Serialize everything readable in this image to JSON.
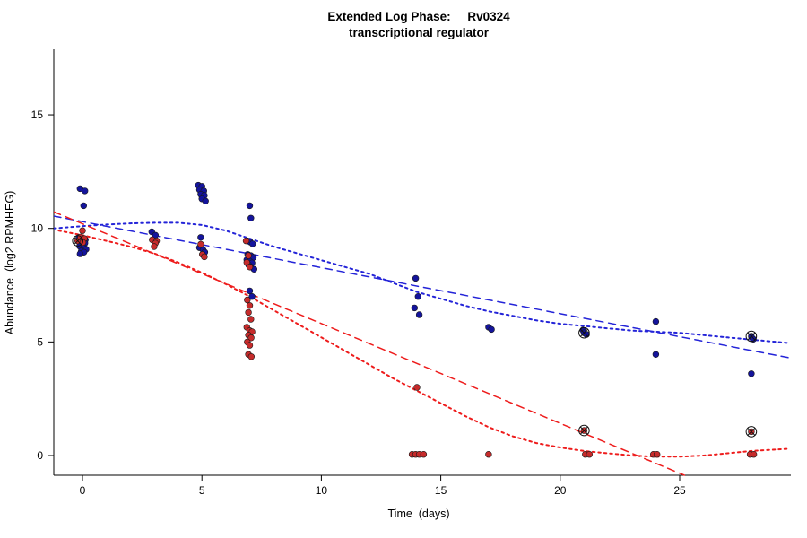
{
  "chart_data": {
    "type": "scatter",
    "title": "Extended Log Phase:     Rv0324",
    "subtitle": "transcriptional regulator",
    "xlabel": "Time  (days)",
    "ylabel": "Abundance  (log2 RPMHEG)",
    "xlim": [
      -1.2,
      29.6
    ],
    "ylim": [
      -0.9,
      17.9
    ],
    "xticks": [
      0,
      5,
      10,
      15,
      20,
      25
    ],
    "yticks": [
      0,
      5,
      10,
      15
    ],
    "grid": false,
    "legend": "none",
    "series": [
      {
        "name": "blue",
        "color": "#14149C",
        "points": [
          [
            -0.1,
            11.75
          ],
          [
            0.1,
            11.65
          ],
          [
            0.05,
            11.0
          ],
          [
            -0.15,
            9.6
          ],
          [
            0.0,
            9.55
          ],
          [
            0.12,
            9.5
          ],
          [
            -0.05,
            9.42
          ],
          [
            0.1,
            9.35
          ],
          [
            -0.12,
            9.22
          ],
          [
            0.05,
            9.15
          ],
          [
            0.15,
            9.08
          ],
          [
            -0.05,
            9.0
          ],
          [
            0.06,
            8.95
          ],
          [
            -0.1,
            8.88
          ],
          [
            2.9,
            9.85
          ],
          [
            3.05,
            9.7
          ],
          [
            4.85,
            11.9
          ],
          [
            5.0,
            11.85
          ],
          [
            4.9,
            11.7
          ],
          [
            5.08,
            11.65
          ],
          [
            4.95,
            11.5
          ],
          [
            5.1,
            11.45
          ],
          [
            5.0,
            11.3
          ],
          [
            5.15,
            11.2
          ],
          [
            4.95,
            9.6
          ],
          [
            4.9,
            9.15
          ],
          [
            5.05,
            9.05
          ],
          [
            5.12,
            8.95
          ],
          [
            7.0,
            11.0
          ],
          [
            7.05,
            10.45
          ],
          [
            6.9,
            9.45
          ],
          [
            7.02,
            9.4
          ],
          [
            7.12,
            9.32
          ],
          [
            6.92,
            8.85
          ],
          [
            7.05,
            8.8
          ],
          [
            7.15,
            8.72
          ],
          [
            6.88,
            8.62
          ],
          [
            7.0,
            8.55
          ],
          [
            7.1,
            8.48
          ],
          [
            6.95,
            8.4
          ],
          [
            7.05,
            8.3
          ],
          [
            7.18,
            8.2
          ],
          [
            7.0,
            7.25
          ],
          [
            7.1,
            7.0
          ],
          [
            13.95,
            7.8
          ],
          [
            14.05,
            7.0
          ],
          [
            13.9,
            6.5
          ],
          [
            14.1,
            6.2
          ],
          [
            17.0,
            5.65
          ],
          [
            17.12,
            5.55
          ],
          [
            20.95,
            5.52
          ],
          [
            21.0,
            5.4
          ],
          [
            21.1,
            5.33
          ],
          [
            24.0,
            5.9
          ],
          [
            24.0,
            4.45
          ],
          [
            28.0,
            5.25
          ],
          [
            28.08,
            5.12
          ],
          [
            28.0,
            3.6
          ]
        ]
      },
      {
        "name": "red",
        "color": "#C62B2B",
        "points": [
          [
            -0.2,
            9.45
          ],
          [
            0.0,
            9.9
          ],
          [
            -0.08,
            9.62
          ],
          [
            0.08,
            9.55
          ],
          [
            0.02,
            9.38
          ],
          [
            2.92,
            9.5
          ],
          [
            3.1,
            9.45
          ],
          [
            3.05,
            9.35
          ],
          [
            3.0,
            9.2
          ],
          [
            4.95,
            9.3
          ],
          [
            5.02,
            8.85
          ],
          [
            5.1,
            8.75
          ],
          [
            6.85,
            9.45
          ],
          [
            6.95,
            8.8
          ],
          [
            6.88,
            8.5
          ],
          [
            7.0,
            8.3
          ],
          [
            6.9,
            6.85
          ],
          [
            7.0,
            6.6
          ],
          [
            6.95,
            6.3
          ],
          [
            7.05,
            6.0
          ],
          [
            6.88,
            5.65
          ],
          [
            7.0,
            5.5
          ],
          [
            7.1,
            5.45
          ],
          [
            6.95,
            5.3
          ],
          [
            7.06,
            5.18
          ],
          [
            6.9,
            5.0
          ],
          [
            7.0,
            4.85
          ],
          [
            6.95,
            4.45
          ],
          [
            7.07,
            4.35
          ],
          [
            14.0,
            3.0
          ],
          [
            13.8,
            0.05
          ],
          [
            13.95,
            0.05
          ],
          [
            14.1,
            0.05
          ],
          [
            14.28,
            0.05
          ],
          [
            17.0,
            0.05
          ],
          [
            21.0,
            1.1
          ],
          [
            21.05,
            0.05
          ],
          [
            21.22,
            0.05
          ],
          [
            23.9,
            0.05
          ],
          [
            24.05,
            0.05
          ],
          [
            28.0,
            1.05
          ],
          [
            27.95,
            0.05
          ],
          [
            28.1,
            0.05
          ]
        ]
      }
    ],
    "outlier_marked_points": {
      "symbol": "circle-x",
      "color": "#111111",
      "points": [
        [
          -0.2,
          9.45
        ],
        [
          21.0,
          5.4
        ],
        [
          21.0,
          1.1
        ],
        [
          28.0,
          5.25
        ],
        [
          28.0,
          1.05
        ]
      ]
    },
    "trend_lines": [
      {
        "name": "blue-dashed",
        "color": "#2424D8",
        "style": "dashed",
        "points": [
          [
            -1.2,
            10.54
          ],
          [
            29.6,
            4.3
          ]
        ]
      },
      {
        "name": "blue-dotted",
        "color": "#2424D8",
        "style": "dotted",
        "points": [
          [
            -1.2,
            10.0
          ],
          [
            0,
            10.1
          ],
          [
            1,
            10.17
          ],
          [
            2,
            10.22
          ],
          [
            3,
            10.25
          ],
          [
            4,
            10.25
          ],
          [
            5,
            10.15
          ],
          [
            6,
            9.9
          ],
          [
            7,
            9.55
          ],
          [
            8,
            9.2
          ],
          [
            9,
            8.9
          ],
          [
            10,
            8.6
          ],
          [
            11,
            8.3
          ],
          [
            12,
            8.0
          ],
          [
            13,
            7.6
          ],
          [
            14,
            7.2
          ],
          [
            15,
            6.9
          ],
          [
            16,
            6.6
          ],
          [
            17,
            6.35
          ],
          [
            18,
            6.15
          ],
          [
            19,
            5.95
          ],
          [
            20,
            5.8
          ],
          [
            21,
            5.7
          ],
          [
            22,
            5.6
          ],
          [
            23,
            5.5
          ],
          [
            24,
            5.45
          ],
          [
            25,
            5.4
          ],
          [
            26,
            5.3
          ],
          [
            27,
            5.2
          ],
          [
            28,
            5.1
          ],
          [
            29.6,
            4.95
          ]
        ]
      },
      {
        "name": "red-dashed",
        "color": "#EE1C1C",
        "style": "dashed",
        "points": [
          [
            -1.2,
            10.73
          ],
          [
            25.2,
            -0.87
          ]
        ]
      },
      {
        "name": "red-dotted",
        "color": "#EE1C1C",
        "style": "dotted",
        "points": [
          [
            -1,
            9.9
          ],
          [
            0,
            9.7
          ],
          [
            1,
            9.45
          ],
          [
            2,
            9.2
          ],
          [
            3,
            8.9
          ],
          [
            4,
            8.5
          ],
          [
            5,
            8.05
          ],
          [
            6,
            7.55
          ],
          [
            7,
            7.0
          ],
          [
            8,
            6.4
          ],
          [
            9,
            5.8
          ],
          [
            10,
            5.2
          ],
          [
            11,
            4.6
          ],
          [
            12,
            4.0
          ],
          [
            13,
            3.4
          ],
          [
            14,
            2.85
          ],
          [
            15,
            2.3
          ],
          [
            16,
            1.75
          ],
          [
            17,
            1.25
          ],
          [
            18,
            0.85
          ],
          [
            19,
            0.55
          ],
          [
            20,
            0.35
          ],
          [
            21,
            0.2
          ],
          [
            22,
            0.1
          ],
          [
            23,
            0.0
          ],
          [
            24,
            -0.05
          ],
          [
            25,
            -0.05
          ],
          [
            26,
            0.0
          ],
          [
            27,
            0.1
          ],
          [
            28,
            0.2
          ],
          [
            29.6,
            0.3
          ]
        ]
      }
    ]
  }
}
